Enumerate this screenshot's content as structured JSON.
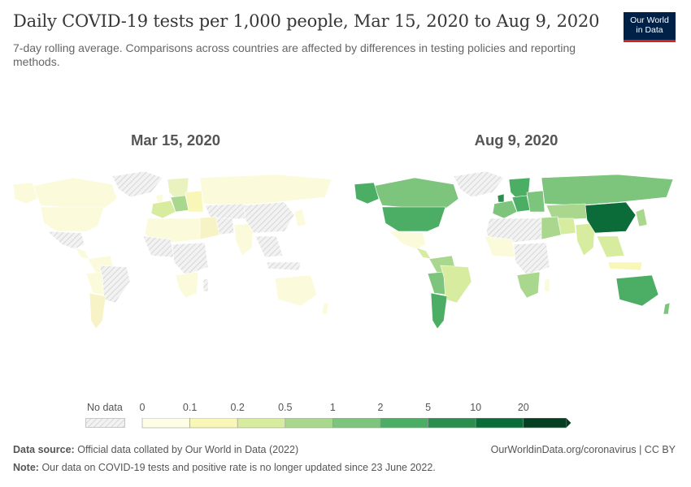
{
  "header": {
    "title": "Daily COVID-19 tests per 1,000 people, Mar 15, 2020 to Aug 9, 2020",
    "subtitle": "7-day rolling average. Comparisons across countries are affected by differences in testing policies and reporting methods."
  },
  "logo": {
    "line1": "Our World",
    "line2": "in Data"
  },
  "maps": [
    {
      "title": "Mar 15, 2020"
    },
    {
      "title": "Aug 9, 2020"
    }
  ],
  "legend": {
    "no_data_label": "No data",
    "ticks": [
      "0",
      "0.1",
      "0.2",
      "0.5",
      "1",
      "2",
      "5",
      "10",
      "20"
    ],
    "bin_colors": [
      "#fefee7",
      "#f8f7b7",
      "#d7ec9e",
      "#aad78e",
      "#7dc47c",
      "#4bae64",
      "#2c8e4e",
      "#0c6c39",
      "#063e21"
    ],
    "no_data_color": "#eeeeee"
  },
  "colors": {
    "land_low": "#fbfbdc",
    "land_mid": "#d7ec9e",
    "land_green": "#7dc47c",
    "land_dark": "#2c8e4e",
    "land_darkest": "#0c6c39",
    "no_data": "#e8e8e8"
  },
  "footer": {
    "source_label": "Data source:",
    "source_text": "Official data collated by Our World in Data (2022)",
    "note_label": "Note:",
    "note_text": "Our data on COVID-19 tests and positive rate is no longer updated since 23 June 2022.",
    "link": "OurWorldinData.org/coronavirus | CC BY"
  }
}
